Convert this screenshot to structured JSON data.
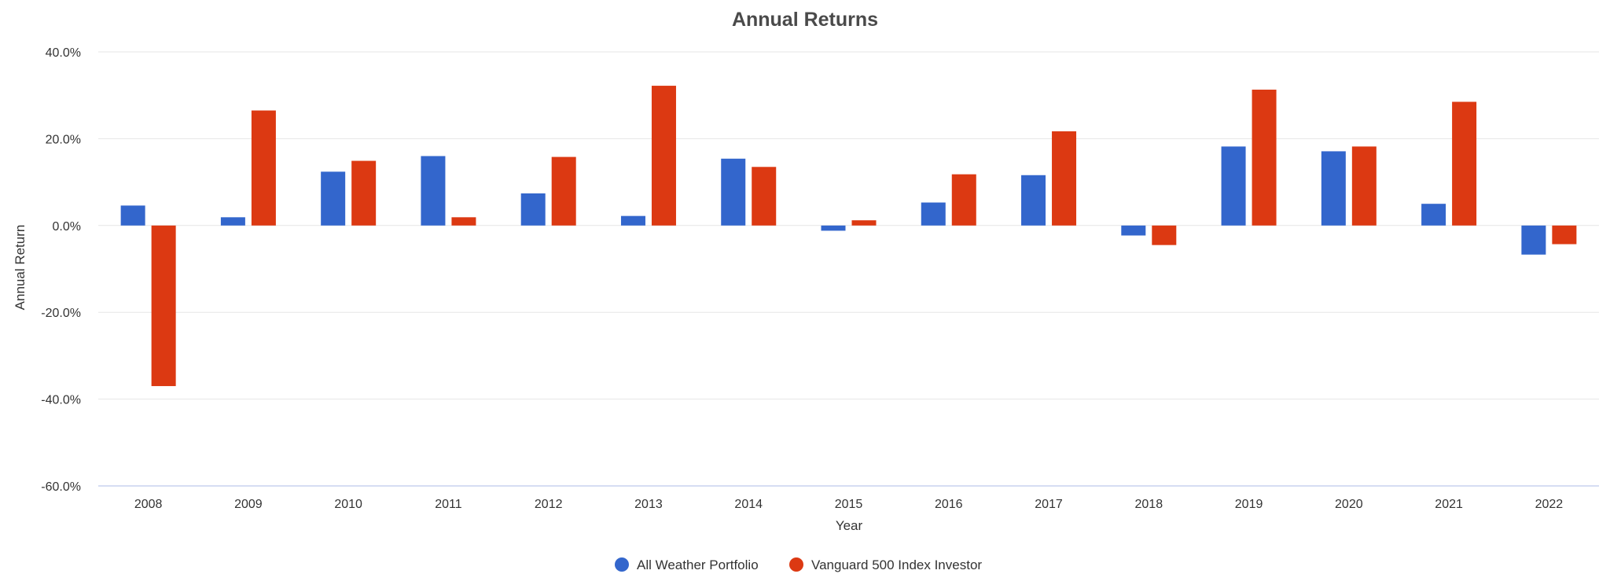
{
  "chart_data": {
    "type": "bar",
    "title": "Annual Returns",
    "xlabel": "Year",
    "ylabel": "Annual Return",
    "categories": [
      "2008",
      "2009",
      "2010",
      "2011",
      "2012",
      "2013",
      "2014",
      "2015",
      "2016",
      "2017",
      "2018",
      "2019",
      "2020",
      "2021",
      "2022"
    ],
    "series": [
      {
        "name": "All Weather Portfolio",
        "color": "#3366cc",
        "values": [
          4.6,
          1.9,
          12.4,
          16.0,
          7.4,
          2.2,
          15.4,
          -1.2,
          5.3,
          11.6,
          -2.3,
          18.2,
          17.1,
          5.0,
          -6.7
        ]
      },
      {
        "name": "Vanguard 500 Index Investor",
        "color": "#dc3912",
        "values": [
          -37.0,
          26.5,
          14.9,
          1.9,
          15.8,
          32.2,
          13.5,
          1.2,
          11.8,
          21.7,
          -4.5,
          31.3,
          18.2,
          28.5,
          -4.3
        ]
      }
    ],
    "ylim": [
      -60,
      40
    ],
    "yticks": [
      "40.0%",
      "20.0%",
      "0.0%",
      "-20.0%",
      "-40.0%",
      "-60.0%"
    ],
    "ytick_values": [
      40,
      20,
      0,
      -20,
      -40,
      -60
    ],
    "grid": true,
    "legend_position": "bottom"
  }
}
